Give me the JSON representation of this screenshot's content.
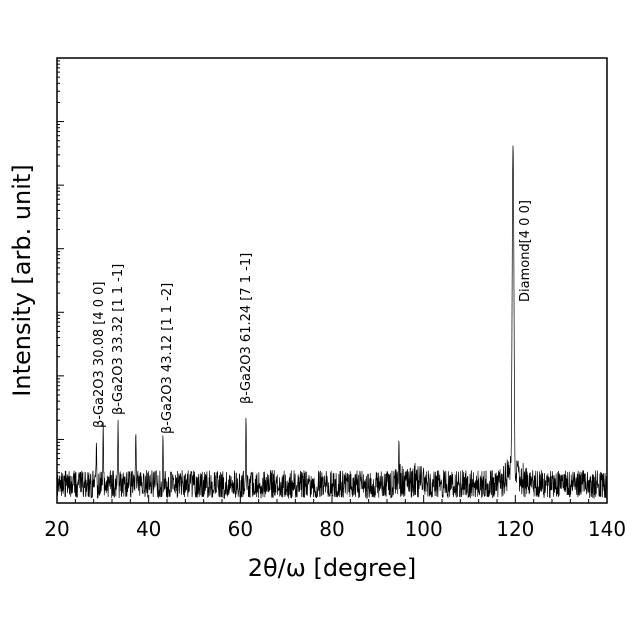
{
  "chart_data": {
    "type": "line",
    "xlabel": "2θ/ω [degree]",
    "ylabel": "Intensity [arb. unit]",
    "xlim": [
      20,
      140
    ],
    "ylim": [
      0,
      7
    ],
    "x_ticks": [
      "20",
      "40",
      "60",
      "80",
      "100",
      "120",
      "140"
    ],
    "y_log_decades": 7,
    "grid": false,
    "noise_floor": 0.45,
    "series": [
      {
        "peaks": [
          {
            "x": 28.6,
            "y": 0.9
          },
          {
            "x": 30.08,
            "y": 1.2
          },
          {
            "x": 33.32,
            "y": 1.25
          },
          {
            "x": 37.2,
            "y": 1.1
          },
          {
            "x": 43.12,
            "y": 1.0
          },
          {
            "x": 61.24,
            "y": 1.35
          },
          {
            "x": 94.6,
            "y": 0.95
          },
          {
            "x": 119.5,
            "y": 5.6
          }
        ]
      }
    ],
    "annotations": [
      {
        "x": 30.08,
        "text": "β-Ga2O3 30.08 [4 0 0]"
      },
      {
        "x": 33.32,
        "text": "β-Ga2O3 33.32 [1 1 -1]"
      },
      {
        "x": 43.12,
        "text": "β-Ga2O3 43.12 [1 1 -2]"
      },
      {
        "x": 61.24,
        "text": "β-Ga2O3 61.24 [7 1 -1]"
      },
      {
        "x": 119.5,
        "text": "Diamond[4 0 0]"
      }
    ]
  }
}
